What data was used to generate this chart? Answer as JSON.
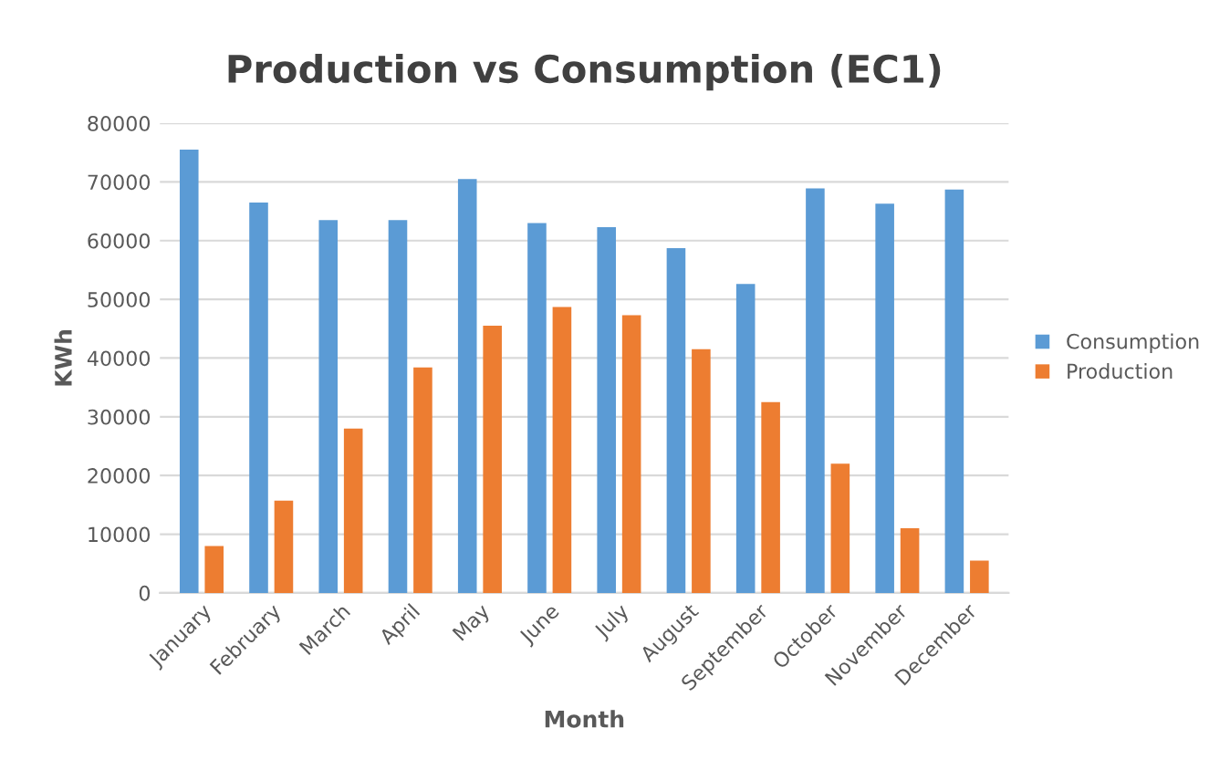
{
  "chart_data": {
    "type": "bar",
    "title": "Production vs Consumption (EC1)",
    "xlabel": "Month",
    "ylabel": "KWh",
    "categories": [
      "January",
      "February",
      "March",
      "April",
      "May",
      "June",
      "July",
      "August",
      "September",
      "October",
      "November",
      "December"
    ],
    "series": [
      {
        "name": "Consumption",
        "color": "#5b9bd5",
        "values": [
          75500,
          66500,
          63500,
          63500,
          70500,
          63000,
          62300,
          58700,
          52600,
          68900,
          66300,
          68700
        ]
      },
      {
        "name": "Production",
        "color": "#ed7d31",
        "values": [
          8000,
          15700,
          28000,
          38400,
          45500,
          48700,
          47300,
          41500,
          32500,
          22000,
          11000,
          5500
        ]
      }
    ],
    "ylim": [
      0,
      80000
    ],
    "yticks": [
      0,
      10000,
      20000,
      30000,
      40000,
      50000,
      60000,
      70000,
      80000
    ],
    "grid": "y",
    "legend": "right"
  }
}
